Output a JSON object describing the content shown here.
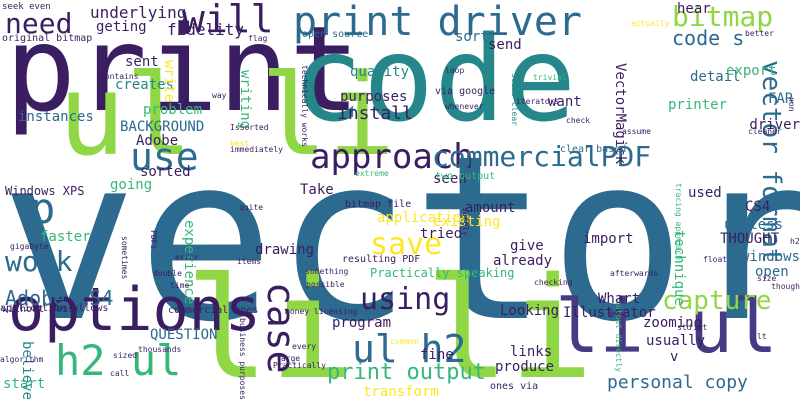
{
  "words": [
    {
      "text": "vector",
      "color": "#2c6a8f"
    },
    {
      "text": "print",
      "color": "#3b1e62"
    },
    {
      "text": "code",
      "color": "#26878b"
    },
    {
      "text": "li",
      "color": "#8fd744"
    },
    {
      "text": "li",
      "color": "#8fd744"
    },
    {
      "text": "li ul",
      "color": "#443b84"
    },
    {
      "text": "ul li",
      "color": "#8fd744"
    },
    {
      "text": "options",
      "color": "#3b1e62"
    },
    {
      "text": "print driver",
      "color": "#2c6a8f"
    },
    {
      "text": "need",
      "color": "#3b1e62"
    },
    {
      "text": "will",
      "color": "#3b1e62"
    },
    {
      "text": "bitmap",
      "color": "#8fd744"
    },
    {
      "text": "h2 ul",
      "color": "#35b779"
    },
    {
      "text": "ul h2",
      "color": "#2c6a8f"
    },
    {
      "text": "approach",
      "color": "#3b1e62"
    },
    {
      "text": "commercialPDF",
      "color": "#2c6a8f"
    },
    {
      "text": "capture",
      "color": "#8fd744"
    },
    {
      "text": "use",
      "color": "#2c6a8f"
    },
    {
      "text": "p",
      "color": "#2c6a8f"
    },
    {
      "text": "work",
      "color": "#2c6a8f"
    },
    {
      "text": "save",
      "color": "#fde725"
    },
    {
      "text": "using",
      "color": "#3b1e62"
    },
    {
      "text": "case",
      "color": "#3b1e62"
    },
    {
      "text": "vector format",
      "color": "#2c6a8f"
    },
    {
      "text": "code s",
      "color": "#2c6a8f"
    },
    {
      "text": "personal copy",
      "color": "#2c6a8f"
    },
    {
      "text": "print output",
      "color": "#35b779"
    },
    {
      "text": "Adobe CS4",
      "color": "#2c6a8f"
    },
    {
      "text": "fidelity",
      "color": "#3b1e62"
    },
    {
      "text": "underlying",
      "color": "#3b1e62"
    },
    {
      "text": "geting",
      "color": "#3b1e62"
    },
    {
      "text": "sent",
      "color": "#3b1e62"
    },
    {
      "text": "creates",
      "color": "#26878b"
    },
    {
      "text": "quality",
      "color": "#26878b"
    },
    {
      "text": "purposes",
      "color": "#3b1e62"
    },
    {
      "text": "install",
      "color": "#3b1e62"
    },
    {
      "text": "want",
      "color": "#3b1e62"
    },
    {
      "text": "detail",
      "color": "#2c6a8f"
    },
    {
      "text": "export",
      "color": "#35b779"
    },
    {
      "text": "driver",
      "color": "#3b1e62"
    },
    {
      "text": "FAR",
      "color": "#2c6a8f"
    },
    {
      "text": "printer",
      "color": "#35b779"
    },
    {
      "text": "instances",
      "color": "#2c6a8f"
    },
    {
      "text": "problem",
      "color": "#35b779"
    },
    {
      "text": "BACKGROUND",
      "color": "#2c6a8f"
    },
    {
      "text": "Adobe",
      "color": "#3b1e62"
    },
    {
      "text": "sorted",
      "color": "#3b1e62"
    },
    {
      "text": "going",
      "color": "#35b779"
    },
    {
      "text": "faster",
      "color": "#35b779"
    },
    {
      "text": "experience",
      "color": "#35b779"
    },
    {
      "text": "drawing",
      "color": "#3b1e62"
    },
    {
      "text": "Take",
      "color": "#3b1e62"
    },
    {
      "text": "seen",
      "color": "#3b1e62"
    },
    {
      "text": "amount",
      "color": "#3b1e62"
    },
    {
      "text": "application",
      "color": "#fde725"
    },
    {
      "text": "existing",
      "color": "#fde725"
    },
    {
      "text": "tried",
      "color": "#3b1e62"
    },
    {
      "text": "give",
      "color": "#3b1e62"
    },
    {
      "text": "already",
      "color": "#3b1e62"
    },
    {
      "text": "import",
      "color": "#3b1e62"
    },
    {
      "text": "used",
      "color": "#3b1e62"
    },
    {
      "text": "CS4",
      "color": "#3b1e62"
    },
    {
      "text": "useless",
      "color": "#2c6a8f"
    },
    {
      "text": "THOUGHT",
      "color": "#3b1e62"
    },
    {
      "text": "windows",
      "color": "#2c6a8f"
    },
    {
      "text": "open",
      "color": "#2c6a8f"
    },
    {
      "text": "technique",
      "color": "#35b779"
    },
    {
      "text": "Whart",
      "color": "#3b1e62"
    },
    {
      "text": "zooming",
      "color": "#3b1e62"
    },
    {
      "text": "usually",
      "color": "#3b1e62"
    },
    {
      "text": "v",
      "color": "#3b1e62"
    },
    {
      "text": "Illustrator",
      "color": "#3b1e62"
    },
    {
      "text": "Looking",
      "color": "#3b1e62"
    },
    {
      "text": "links",
      "color": "#3b1e62"
    },
    {
      "text": "produce",
      "color": "#3b1e62"
    },
    {
      "text": "fine",
      "color": "#3b1e62"
    },
    {
      "text": "program",
      "color": "#3b1e62"
    },
    {
      "text": "transform",
      "color": "#fde725"
    },
    {
      "text": "QUESTION",
      "color": "#2c6a8f"
    },
    {
      "text": "start",
      "color": "#35b779"
    },
    {
      "text": "believe",
      "color": "#26878b"
    },
    {
      "text": "VectorMagick",
      "color": "#3b1e62"
    },
    {
      "text": "sort",
      "color": "#2c6a8f"
    },
    {
      "text": "send",
      "color": "#3b1e62"
    },
    {
      "text": "hear",
      "color": "#3b1e62"
    },
    {
      "text": "write",
      "color": "#fde725"
    },
    {
      "text": "writing",
      "color": "#35b779"
    },
    {
      "text": "Windows XPS",
      "color": "#3b1e62"
    },
    {
      "text": "seek even",
      "color": "#3b1e62"
    },
    {
      "text": "original bitmap",
      "color": "#3b1e62"
    },
    {
      "text": "flag",
      "color": "#3b1e62"
    },
    {
      "text": "open source",
      "color": "#2c6a8f"
    },
    {
      "text": "via google",
      "color": "#3b1e62"
    },
    {
      "text": "clear based",
      "color": "#2c6a8f"
    },
    {
      "text": "bitmap file",
      "color": "#3b1e62"
    },
    {
      "text": "resulting PDF",
      "color": "#3b1e62"
    },
    {
      "text": "Practically speaking",
      "color": "#35b779"
    },
    {
      "text": "two output",
      "color": "#35b779"
    },
    {
      "text": "application allows",
      "color": "#3b1e62"
    },
    {
      "text": "without loss",
      "color": "#3b1e62"
    },
    {
      "text": "commercial ones",
      "color": "#3b1e62"
    },
    {
      "text": "money licensing",
      "color": "#3b1e62"
    },
    {
      "text": "ones via",
      "color": "#3b1e62"
    },
    {
      "text": "business purposes",
      "color": "#3b1e62"
    },
    {
      "text": "output directly",
      "color": "#35b779"
    },
    {
      "text": "tracing approach",
      "color": "#35b779"
    },
    {
      "text": "technically works",
      "color": "#3b1e62"
    },
    {
      "text": "seems clear",
      "color": "#26878b"
    },
    {
      "text": "IsSorted",
      "color": "#3b1e62"
    },
    {
      "text": "immediately",
      "color": "#3b1e62"
    },
    {
      "text": "loop",
      "color": "#3b1e62"
    },
    {
      "text": "whenever",
      "color": "#3b1e62"
    },
    {
      "text": "iterators",
      "color": "#3b1e62"
    },
    {
      "text": "trivial",
      "color": "#35b779"
    },
    {
      "text": "check",
      "color": "#3b1e62"
    },
    {
      "text": "actually",
      "color": "#fde725"
    },
    {
      "text": "better",
      "color": "#3b1e62"
    },
    {
      "text": "assume",
      "color": "#3b1e62"
    },
    {
      "text": "cleaner",
      "color": "#3b1e62"
    },
    {
      "text": "non",
      "color": "#3b1e62"
    },
    {
      "text": "contains",
      "color": "#3b1e62"
    },
    {
      "text": "way",
      "color": "#3b1e62"
    },
    {
      "text": "best",
      "color": "#fde725"
    },
    {
      "text": "extreme",
      "color": "#35b779"
    },
    {
      "text": "quite",
      "color": "#3b1e62"
    },
    {
      "text": "sometimes",
      "color": "#3b1e62"
    },
    {
      "text": "PDFs",
      "color": "#3b1e62"
    },
    {
      "text": "gigabyte",
      "color": "#3b1e62"
    },
    {
      "text": "error",
      "color": "#3b1e62"
    },
    {
      "text": "double",
      "color": "#3b1e62"
    },
    {
      "text": "time",
      "color": "#3b1e62"
    },
    {
      "text": "items",
      "color": "#3b1e62"
    },
    {
      "text": "something",
      "color": "#3b1e62"
    },
    {
      "text": "possible",
      "color": "#3b1e62"
    },
    {
      "text": "safely",
      "color": "#3b1e62"
    },
    {
      "text": "afterwards",
      "color": "#3b1e62"
    },
    {
      "text": "float",
      "color": "#3b1e62"
    },
    {
      "text": "checking",
      "color": "#3b1e62"
    },
    {
      "text": "size",
      "color": "#3b1e62"
    },
    {
      "text": "though",
      "color": "#3b1e62"
    },
    {
      "text": "h2",
      "color": "#3b1e62"
    },
    {
      "text": "std",
      "color": "#3b1e62"
    },
    {
      "text": "int",
      "color": "#3b1e62"
    },
    {
      "text": "lt",
      "color": "#3b1e62"
    },
    {
      "text": "common",
      "color": "#fde725"
    },
    {
      "text": "every",
      "color": "#3b1e62"
    },
    {
      "text": "large",
      "color": "#3b1e62"
    },
    {
      "text": "thousands",
      "color": "#3b1e62"
    },
    {
      "text": "sized",
      "color": "#3b1e62"
    },
    {
      "text": "call",
      "color": "#3b1e62"
    },
    {
      "text": "algorithm",
      "color": "#3b1e62"
    },
    {
      "text": "Practically",
      "color": "#3b1e62"
    }
  ]
}
